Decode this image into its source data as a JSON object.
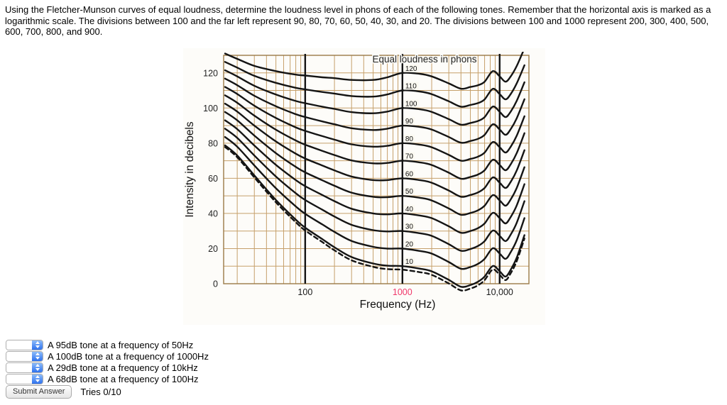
{
  "question": {
    "text": "Using the Fletcher-Munson curves of equal loudness, determine the loudness level in phons of each of the following tones. Remember that the horizontal axis is marked as a logarithmic scale. The divisions between 100 and the far left represent 90, 80, 70, 60, 50, 40, 30, and 20. The divisions between 100 and 1000 represent 200, 300, 400, 500, 600, 700, 800, and 900."
  },
  "answers": [
    {
      "label": "A 95dB tone at a frequency of 50Hz"
    },
    {
      "label": "A 100dB tone at a frequency of 1000Hz"
    },
    {
      "label": "A 29dB tone at a frequency of 10kHz"
    },
    {
      "label": "A 68dB tone at a frequency of 100Hz"
    }
  ],
  "submit": {
    "button_label": "Submit Answer",
    "tries_text": "Tries 0/10"
  },
  "chart_data": {
    "type": "line",
    "title": "Equal loudness in phons",
    "xlabel": "Frequency (Hz)",
    "ylabel": "Intensity in decibels",
    "x_scale": "log",
    "xlim": [
      14.5,
      20000
    ],
    "ylim": [
      0,
      130
    ],
    "y_ticks": [
      0,
      20,
      40,
      60,
      80,
      100,
      120
    ],
    "x_ticks": [
      {
        "value": 100,
        "label": "100",
        "color": "#1a1a1a"
      },
      {
        "value": 1000,
        "label": "1000",
        "color": "#f0386a"
      },
      {
        "value": 10000,
        "label": "10,000",
        "color": "#1a1a1a"
      }
    ],
    "grid_color": "#9a7a48",
    "grid_color_minor": "#c6a06b",
    "decade_line_color": "#141414",
    "curve_color": "#141414",
    "curve_labels": [
      "120",
      "110",
      "100",
      "90",
      "80",
      "70",
      "60",
      "50",
      "40",
      "30",
      "20",
      "10"
    ],
    "phon_curves": [
      120,
      110,
      100,
      90,
      80,
      70,
      60,
      50,
      40,
      30,
      20,
      10
    ],
    "threshold_phon": 8,
    "threshold_dashed": true,
    "frequencies": [
      15,
      20,
      30,
      50,
      80,
      100,
      150,
      200,
      300,
      500,
      700,
      1000,
      1500,
      2000,
      3000,
      4000,
      5000,
      6000,
      7000,
      8500,
      10000,
      11500,
      13000,
      15000,
      18000
    ],
    "threshold_ref": [
      82,
      76,
      64,
      49,
      37,
      32,
      25,
      20,
      14,
      10,
      8.5,
      8,
      6.5,
      5,
      0,
      -4,
      -3,
      -1,
      2,
      8,
      5,
      2,
      6,
      13,
      26
    ],
    "top_ref": [
      131,
      128,
      124,
      121,
      119,
      118.5,
      117.5,
      117,
      116,
      116,
      117.5,
      120,
      119.5,
      118,
      114,
      111,
      112,
      113,
      115,
      121,
      118,
      115,
      118,
      124,
      134
    ]
  }
}
